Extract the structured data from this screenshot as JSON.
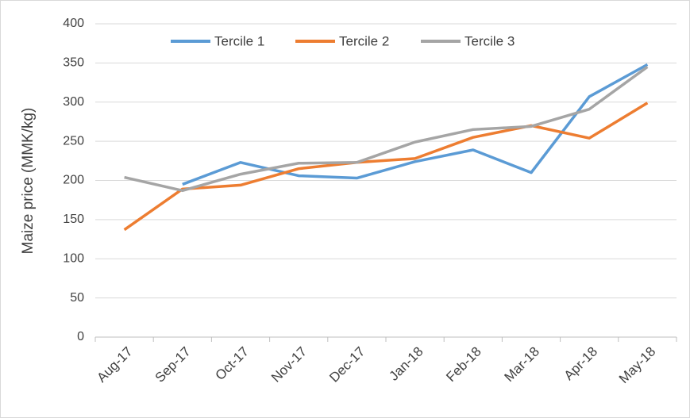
{
  "chart_data": {
    "type": "line",
    "y_label": "Maize price (MMK/kg)",
    "categories": [
      "Aug-17",
      "Sep-17",
      "Oct-17",
      "Nov-17",
      "Dec-17",
      "Jan-18",
      "Feb-18",
      "Mar-18",
      "Apr-18",
      "May-18"
    ],
    "series": [
      {
        "name": "Tercile 1",
        "color": "#5b9bd5",
        "values": [
          null,
          195,
          223,
          206,
          203,
          224,
          239,
          210,
          307,
          348
        ]
      },
      {
        "name": "Tercile 2",
        "color": "#ed7d31",
        "values": [
          137,
          189,
          194,
          215,
          223,
          228,
          255,
          270,
          254,
          299
        ]
      },
      {
        "name": "Tercile 3",
        "color": "#a5a5a5",
        "values": [
          204,
          187,
          208,
          222,
          223,
          249,
          265,
          269,
          291,
          345
        ]
      }
    ],
    "ylim": [
      0,
      400
    ],
    "yticks": [
      0,
      50,
      100,
      150,
      200,
      250,
      300,
      350,
      400
    ],
    "grid": true,
    "legend": "top"
  }
}
